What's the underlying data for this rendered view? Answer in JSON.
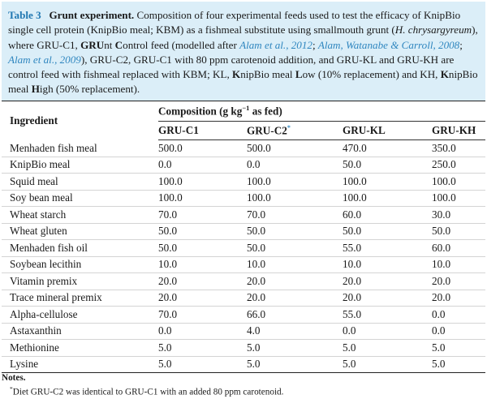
{
  "caption": {
    "label": "Table 3",
    "title": "Grunt experiment.",
    "s1": " Composition of four experimental feeds used to test the efficacy of KnipBio single cell protein (KnipBio meal; KBM) as a fishmeal substitute using smallmouth grunt (",
    "species": "H. chrysargyreum",
    "s2": "), where GRU-C1, ",
    "gr": "GRU",
    "s3": "nt ",
    "c": "C",
    "s4": "ontrol feed (modelled after ",
    "cite1": "Alam et al., 2012",
    "semi1": "; ",
    "cite2": "Alam, Watanabe & Carroll, 2008",
    "semi2": "; ",
    "cite3": "Alam et al., 2009",
    "s5": "), GRU-C2, GRU-C1 with 80 ppm carotenoid addition, and GRU-KL and GRU-KH are control feed with fishmeal replaced with KBM; KL, ",
    "k1": "K",
    "s6": "nipBio meal ",
    "l": "L",
    "s7": "ow (10% replacement) and KH, ",
    "k2": "K",
    "s8": "nipBio meal ",
    "h": "H",
    "s9": "igh (50% replacement)."
  },
  "table": {
    "ingredient_header": "Ingredient",
    "composition_header": "Composition (g kg",
    "composition_exp": "−1",
    "composition_tail": " as fed)",
    "columns": [
      "GRU-C1",
      "GRU-C2",
      "GRU-KL",
      "GRU-KH"
    ],
    "column_marker": "*",
    "rows": [
      {
        "name": "Menhaden fish meal",
        "values": [
          "500.0",
          "500.0",
          "470.0",
          "350.0"
        ]
      },
      {
        "name": "KnipBio meal",
        "values": [
          "0.0",
          "0.0",
          "50.0",
          "250.0"
        ]
      },
      {
        "name": "Squid meal",
        "values": [
          "100.0",
          "100.0",
          "100.0",
          "100.0"
        ]
      },
      {
        "name": "Soy bean meal",
        "values": [
          "100.0",
          "100.0",
          "100.0",
          "100.0"
        ]
      },
      {
        "name": "Wheat starch",
        "values": [
          "70.0",
          "70.0",
          "60.0",
          "30.0"
        ]
      },
      {
        "name": "Wheat gluten",
        "values": [
          "50.0",
          "50.0",
          "50.0",
          "50.0"
        ]
      },
      {
        "name": "Menhaden fish oil",
        "values": [
          "50.0",
          "50.0",
          "55.0",
          "60.0"
        ]
      },
      {
        "name": "Soybean lecithin",
        "values": [
          "10.0",
          "10.0",
          "10.0",
          "10.0"
        ]
      },
      {
        "name": "Vitamin premix",
        "values": [
          "20.0",
          "20.0",
          "20.0",
          "20.0"
        ]
      },
      {
        "name": "Trace mineral premix",
        "values": [
          "20.0",
          "20.0",
          "20.0",
          "20.0"
        ]
      },
      {
        "name": "Alpha-cellulose",
        "values": [
          "70.0",
          "66.0",
          "55.0",
          "0.0"
        ]
      },
      {
        "name": "Astaxanthin",
        "values": [
          "0.0",
          "4.0",
          "0.0",
          "0.0"
        ]
      },
      {
        "name": "Methionine",
        "values": [
          "5.0",
          "5.0",
          "5.0",
          "5.0"
        ]
      },
      {
        "name": "Lysine",
        "values": [
          "5.0",
          "5.0",
          "5.0",
          "5.0"
        ]
      }
    ]
  },
  "notes": {
    "title": "Notes.",
    "marker": "*",
    "text": "Diet GRU-C2 was identical to GRU-C1 with an added 80 ppm carotenoid."
  }
}
